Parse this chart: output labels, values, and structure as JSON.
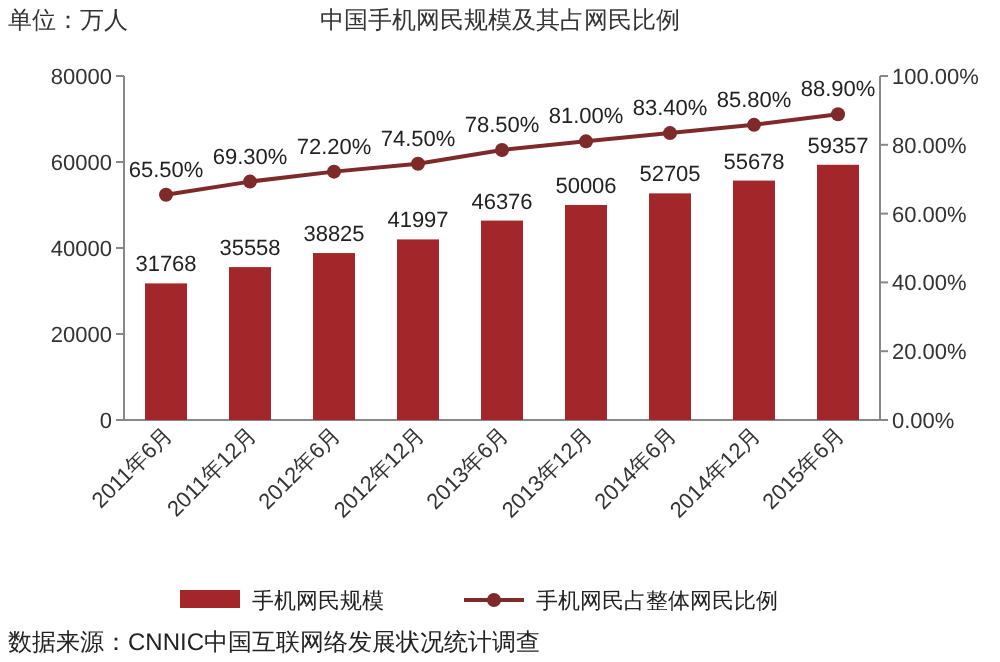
{
  "chart_data": {
    "type": "bar",
    "title": "中国手机网民规模及其占网民比例",
    "annotations": [
      "单位：万人",
      "数据来源：CNNIC中国互联网络发展状况统计调查"
    ],
    "categories": [
      "2011年6月",
      "2011年12月",
      "2012年6月",
      "2012年12月",
      "2013年6月",
      "2013年12月",
      "2014年6月",
      "2014年12月",
      "2015年6月"
    ],
    "series": [
      {
        "name": "手机网民规模",
        "color": "#a3262a",
        "values": [
          31768,
          35558,
          38825,
          41997,
          46376,
          50006,
          52705,
          55678,
          59357
        ],
        "value_labels": [
          "31768",
          "35558",
          "38825",
          "41997",
          "46376",
          "50006",
          "52705",
          "55678",
          "59357"
        ]
      },
      {
        "name": "手机网民占整体网民比例",
        "type": "line",
        "axis": "y2",
        "color": "#7f2a2a",
        "values": [
          65.5,
          69.3,
          72.2,
          74.5,
          78.5,
          81.0,
          83.4,
          85.8,
          88.9
        ],
        "value_labels": [
          "65.50%",
          "69.30%",
          "72.20%",
          "74.50%",
          "78.50%",
          "81.00%",
          "83.40%",
          "85.80%",
          "88.90%"
        ]
      }
    ],
    "ylim": [
      0,
      80000
    ],
    "yticks": [
      0,
      20000,
      40000,
      60000,
      80000
    ],
    "y2lim": [
      0,
      100
    ],
    "y2ticks": [
      {
        "value": 0,
        "label": "0.00%"
      },
      {
        "value": 20,
        "label": "20.00%"
      },
      {
        "value": 40,
        "label": "40.00%"
      },
      {
        "value": 60,
        "label": "60.00%"
      },
      {
        "value": 80,
        "label": "80.00%"
      },
      {
        "value": 100,
        "label": "100.00%"
      }
    ],
    "marker": "circle",
    "legend": "bottom",
    "grid": false
  }
}
